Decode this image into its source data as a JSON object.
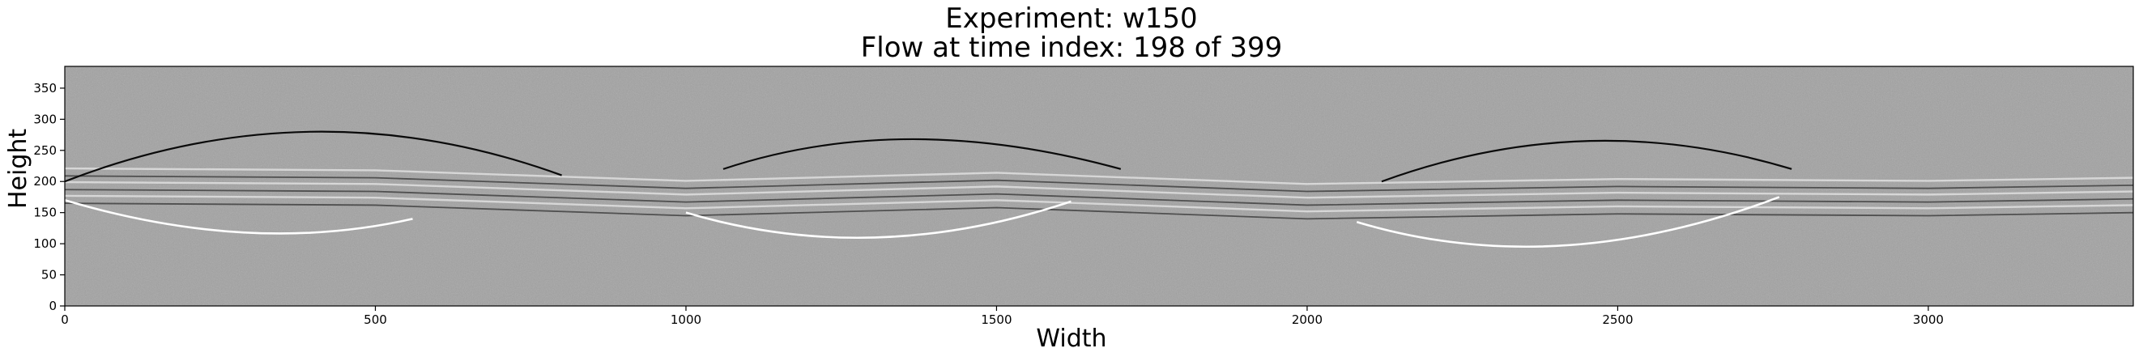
{
  "figure": {
    "title_lines": [
      "Experiment: w150",
      "Flow at time index: 198 of 399"
    ]
  },
  "chart_data": {
    "type": "heatmap",
    "title": "Experiment: w150\nFlow at time index: 198 of 399",
    "xlabel": "Width",
    "ylabel": "Height",
    "xlim": [
      0,
      3330
    ],
    "ylim": [
      0,
      385
    ],
    "xticks": [
      0,
      500,
      1000,
      1500,
      2000,
      2500,
      3000
    ],
    "yticks": [
      0,
      50,
      100,
      150,
      200,
      250,
      300,
      350
    ],
    "colormap": "gray",
    "grid": false,
    "legend": "none",
    "colors": {
      "background": "#a2a2a2",
      "bright_line": "#ffffff",
      "dark_line": "#0a0a0a"
    },
    "features": {
      "upper_arcs": [
        {
          "x": [
            0,
            400,
            800
          ],
          "y": [
            200,
            280,
            210
          ]
        },
        {
          "x": [
            1060,
            1350,
            1700
          ],
          "y": [
            220,
            268,
            220
          ]
        },
        {
          "x": [
            2120,
            2450,
            2780
          ],
          "y": [
            200,
            265,
            220
          ]
        }
      ],
      "lower_arcs": [
        {
          "x": [
            0,
            300,
            560
          ],
          "y": [
            170,
            118,
            140
          ]
        },
        {
          "x": [
            1000,
            1300,
            1620
          ],
          "y": [
            150,
            110,
            168
          ]
        },
        {
          "x": [
            2080,
            2400,
            2760
          ],
          "y": [
            135,
            97,
            175
          ]
        }
      ],
      "band_centerline": {
        "x": [
          0,
          500,
          1000,
          1500,
          2000,
          2500,
          3000,
          3330
        ],
        "y": [
          195,
          192,
          175,
          188,
          170,
          178,
          175,
          180
        ]
      }
    }
  }
}
